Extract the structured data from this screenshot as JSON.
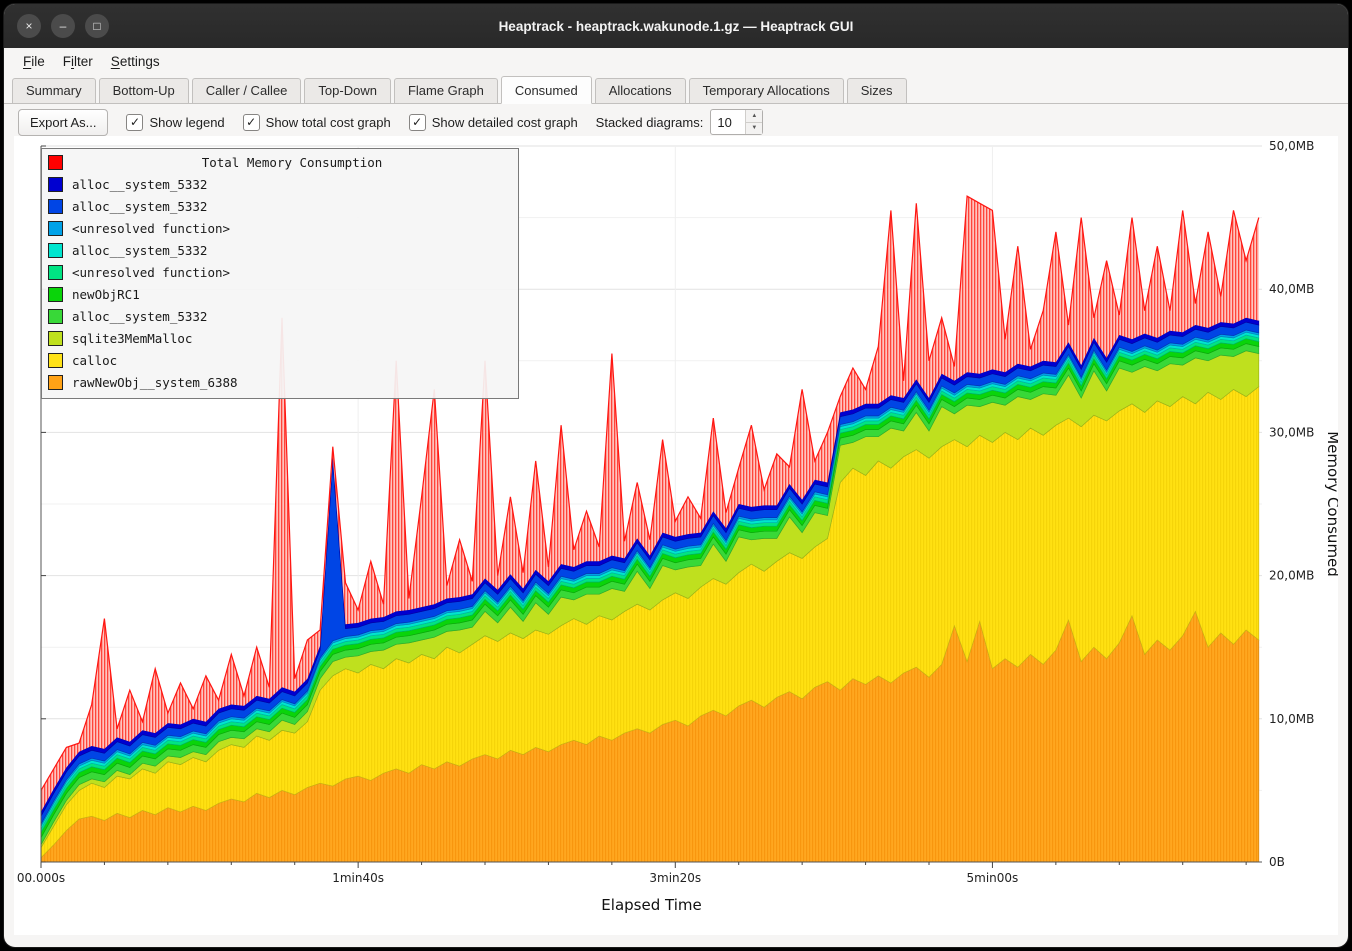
{
  "window": {
    "title": "Heaptrack - heaptrack.wakunode.1.gz — Heaptrack GUI",
    "controls": [
      {
        "name": "close",
        "glyph": "×"
      },
      {
        "name": "minimize",
        "glyph": "–"
      },
      {
        "name": "maximize",
        "glyph": "□"
      }
    ]
  },
  "menubar": {
    "items": [
      {
        "label": "File",
        "accel": 0
      },
      {
        "label": "Filter",
        "accel": 1
      },
      {
        "label": "Settings",
        "accel": 0
      }
    ]
  },
  "tabs": {
    "active": "Consumed",
    "items": [
      "Summary",
      "Bottom-Up",
      "Caller / Callee",
      "Top-Down",
      "Flame Graph",
      "Consumed",
      "Allocations",
      "Temporary Allocations",
      "Sizes"
    ]
  },
  "toolbar": {
    "export_button": "Export As...",
    "checkboxes": [
      {
        "label": "Show legend",
        "checked": true
      },
      {
        "label": "Show total cost graph",
        "checked": true
      },
      {
        "label": "Show detailed cost graph",
        "checked": true
      }
    ],
    "stacked_label": "Stacked diagrams:",
    "stacked_value": "10"
  },
  "legend": {
    "title": "Total Memory Consumption",
    "title_color": "#ff0000",
    "entries": [
      {
        "label": "alloc__system_5332",
        "color": "#0000d0"
      },
      {
        "label": "alloc__system_5332",
        "color": "#0045e5"
      },
      {
        "label": "<unresolved function>",
        "color": "#00a2e8"
      },
      {
        "label": "alloc__system_5332",
        "color": "#00e5cf"
      },
      {
        "label": "<unresolved function>",
        "color": "#00e483"
      },
      {
        "label": "newObjRC1",
        "color": "#0ad40a"
      },
      {
        "label": "alloc__system_5332",
        "color": "#38d838"
      },
      {
        "label": "sqlite3MemMalloc",
        "color": "#bfe01e"
      },
      {
        "label": "calloc",
        "color": "#ffe217"
      },
      {
        "label": "rawNewObj__system_6388",
        "color": "#ffa216"
      }
    ]
  },
  "chart_data": {
    "type": "stacked-area",
    "title": "Total Memory Consumption",
    "xlabel": "Elapsed Time",
    "ylabel": "Memory Consumed",
    "x_unit": "seconds",
    "y_unit": "MB",
    "xlim": [
      0,
      385
    ],
    "ylim": [
      0,
      50
    ],
    "grid": true,
    "legend_position": "top-left",
    "x_ticks": [
      {
        "v": 0,
        "label": "00.000s"
      },
      {
        "v": 100,
        "label": "1min40s"
      },
      {
        "v": 200,
        "label": "3min20s"
      },
      {
        "v": 300,
        "label": "5min00s"
      }
    ],
    "y_ticks": [
      {
        "v": 0,
        "label": "0B"
      },
      {
        "v": 10,
        "label": "10,0MB"
      },
      {
        "v": 20,
        "label": "20,0MB"
      },
      {
        "v": 30,
        "label": "30,0MB"
      },
      {
        "v": 40,
        "label": "40,0MB"
      },
      {
        "v": 50,
        "label": "50,0MB"
      }
    ],
    "x": [
      0,
      4,
      8,
      12,
      16,
      20,
      24,
      28,
      32,
      36,
      40,
      44,
      48,
      52,
      56,
      60,
      64,
      68,
      72,
      76,
      80,
      84,
      88,
      92,
      96,
      100,
      104,
      108,
      112,
      116,
      120,
      124,
      128,
      132,
      136,
      140,
      144,
      148,
      152,
      156,
      160,
      164,
      168,
      172,
      176,
      180,
      184,
      188,
      192,
      196,
      200,
      204,
      208,
      212,
      216,
      220,
      224,
      228,
      232,
      236,
      240,
      244,
      248,
      252,
      256,
      260,
      264,
      268,
      272,
      276,
      280,
      284,
      288,
      292,
      296,
      300,
      304,
      308,
      312,
      316,
      320,
      324,
      328,
      332,
      336,
      340,
      344,
      348,
      352,
      356,
      360,
      364,
      368,
      372,
      376,
      380,
      384
    ],
    "series": [
      {
        "name": "rawNewObj__system_6388",
        "color": "#ffa216",
        "values": [
          0.3,
          1.2,
          2.2,
          3.0,
          3.2,
          2.9,
          3.4,
          3.1,
          3.6,
          3.3,
          3.8,
          3.5,
          3.9,
          3.6,
          4.1,
          4.4,
          4.2,
          4.8,
          4.5,
          5.0,
          4.7,
          5.2,
          5.5,
          5.3,
          5.8,
          6.0,
          5.7,
          6.2,
          6.5,
          6.2,
          6.8,
          6.5,
          7.0,
          6.7,
          7.2,
          7.5,
          7.2,
          7.8,
          7.5,
          8.0,
          7.7,
          8.2,
          8.5,
          8.2,
          8.8,
          8.5,
          9.0,
          9.3,
          9.0,
          9.6,
          9.9,
          9.5,
          10.2,
          10.6,
          10.2,
          10.9,
          11.3,
          10.8,
          11.5,
          11.9,
          11.4,
          12.2,
          12.6,
          12.0,
          12.8,
          12.4,
          13.0,
          12.5,
          13.2,
          13.6,
          12.9,
          13.8,
          16.5,
          14.0,
          16.8,
          13.5,
          14.2,
          13.6,
          14.5,
          13.8,
          14.8,
          16.9,
          14.0,
          15.0,
          14.2,
          15.3,
          17.2,
          14.5,
          15.5,
          14.8,
          15.8,
          17.5,
          15.0,
          16.0,
          15.2,
          16.2,
          15.5
        ]
      },
      {
        "name": "calloc",
        "color": "#ffe217",
        "values": [
          0.7,
          1.3,
          1.8,
          2.0,
          2.3,
          2.3,
          2.6,
          2.7,
          2.9,
          2.9,
          3.2,
          3.3,
          3.4,
          3.4,
          3.7,
          3.8,
          3.8,
          4.0,
          4.0,
          4.2,
          4.3,
          4.6,
          6.5,
          7.7,
          7.7,
          7.2,
          8.1,
          7.3,
          7.7,
          7.7,
          7.7,
          7.7,
          8.0,
          7.9,
          8.0,
          8.3,
          8.2,
          8.2,
          8.1,
          8.2,
          8.2,
          8.3,
          8.5,
          8.4,
          8.4,
          8.4,
          8.5,
          8.7,
          8.6,
          8.7,
          8.9,
          8.9,
          9.0,
          9.2,
          9.2,
          9.3,
          9.5,
          9.5,
          9.5,
          9.7,
          9.8,
          9.8,
          10.0,
          14.5,
          14.7,
          14.6,
          15.0,
          15.0,
          15.1,
          15.2,
          15.3,
          15.2,
          13.0,
          15.0,
          13.0,
          15.8,
          15.8,
          15.9,
          15.8,
          16.0,
          15.7,
          14.1,
          16.4,
          16.2,
          16.6,
          16.2,
          14.8,
          16.9,
          16.7,
          17.0,
          16.7,
          14.5,
          17.8,
          16.3,
          17.8,
          16.3,
          17.7
        ]
      },
      {
        "name": "sqlite3MemMalloc",
        "color": "#bfe01e",
        "values": [
          0.2,
          0.3,
          0.3,
          0.4,
          0.3,
          0.4,
          0.4,
          0.3,
          0.4,
          0.5,
          0.4,
          0.5,
          0.4,
          0.5,
          0.6,
          0.5,
          0.6,
          0.5,
          0.6,
          0.7,
          0.6,
          0.7,
          0.8,
          1.0,
          0.8,
          1.2,
          0.9,
          1.3,
          1.0,
          1.4,
          1.0,
          1.5,
          1.1,
          1.6,
          1.2,
          1.7,
          1.3,
          1.8,
          1.2,
          1.9,
          1.4,
          2.0,
          1.3,
          2.1,
          1.5,
          2.2,
          1.4,
          2.3,
          1.5,
          2.4,
          1.6,
          2.2,
          1.5,
          2.4,
          1.6,
          2.5,
          1.7,
          2.3,
          1.6,
          2.5,
          1.8,
          2.4,
          1.6,
          2.6,
          1.8,
          2.7,
          1.7,
          2.8,
          1.8,
          2.6,
          1.9,
          2.8,
          1.8,
          2.9,
          2.0,
          2.8,
          1.9,
          3.0,
          2.0,
          2.9,
          2.1,
          3.0,
          2.0,
          3.1,
          2.1,
          3.0,
          2.2,
          3.2,
          2.1,
          3.0,
          2.2,
          3.2,
          2.2,
          3.1,
          2.3,
          3.2,
          2.3
        ]
      },
      {
        "name": "alloc__system_5332",
        "color": "#38d838",
        "values": 0.5
      },
      {
        "name": "newObjRC1",
        "color": "#0ad40a",
        "values": 0.35
      },
      {
        "name": "<unresolved function>",
        "color": "#00e483",
        "values": 0.25
      },
      {
        "name": "alloc__system_5332",
        "color": "#00e5cf",
        "values": 0.2
      },
      {
        "name": "<unresolved function>",
        "color": "#00a2e8",
        "values": 0.15
      },
      {
        "name": "alloc__system_5332",
        "color": "#0045e5",
        "values": [
          0.55,
          0.55,
          0.55,
          0.55,
          0.55,
          0.55,
          0.55,
          0.55,
          0.55,
          0.55,
          0.55,
          0.55,
          0.55,
          0.55,
          0.55,
          0.55,
          0.55,
          0.55,
          0.55,
          0.55,
          0.55,
          0.55,
          0.55,
          12.5,
          0.55,
          0.55,
          0.55,
          0.55,
          0.55,
          0.55,
          0.55,
          0.55,
          0.55,
          0.55,
          0.55,
          0.55,
          0.55,
          0.55,
          0.55,
          0.55,
          0.55,
          0.55,
          0.55,
          0.55,
          0.55,
          0.55,
          0.55,
          0.55,
          0.55,
          0.55,
          0.55,
          0.55,
          0.55,
          0.55,
          0.55,
          0.55,
          0.55,
          0.55,
          0.55,
          0.55,
          0.55,
          0.55,
          0.55,
          0.55,
          0.55,
          0.55,
          0.55,
          0.55,
          0.55,
          0.55,
          0.55,
          0.55,
          0.55,
          0.55,
          0.55,
          0.55,
          0.55,
          0.55,
          0.55,
          0.55,
          0.55,
          0.55,
          0.55,
          0.55,
          0.55,
          0.55,
          0.55,
          0.55,
          0.55,
          0.55,
          0.55,
          0.55,
          0.55,
          0.55,
          0.55,
          0.55,
          0.55
        ]
      },
      {
        "name": "alloc__system_5332",
        "color": "#0000d0",
        "values": 0.3
      }
    ],
    "total": {
      "name": "Total Memory Consumption",
      "color": "#ff0000",
      "values": [
        5,
        6.5,
        8,
        8.3,
        11,
        17,
        9.3,
        12,
        9.8,
        13.5,
        10.4,
        12.5,
        10.7,
        13,
        11.3,
        14.5,
        11.6,
        15,
        12.2,
        38,
        12.8,
        15.5,
        16.2,
        29,
        19.5,
        17.6,
        21,
        18,
        35,
        18.4,
        25.5,
        33,
        19.3,
        22.5,
        19.6,
        35,
        20,
        25.5,
        20.2,
        28,
        20.6,
        30.5,
        21.8,
        24.5,
        22,
        35.5,
        22.4,
        26.5,
        22.5,
        29.5,
        23.8,
        25.5,
        24,
        31,
        24.4,
        27.5,
        30.5,
        26,
        28.5,
        27.6,
        33,
        28,
        30,
        32.5,
        34.5,
        33,
        36,
        45.5,
        33.6,
        46,
        35,
        38,
        34.6,
        46.5,
        46,
        45.5,
        36.5,
        43,
        35.8,
        38.5,
        44,
        37.5,
        45,
        38,
        42,
        38.2,
        45,
        38.5,
        43,
        38.5,
        45.5,
        39,
        44,
        39.5,
        45.5,
        42,
        45
      ]
    }
  }
}
